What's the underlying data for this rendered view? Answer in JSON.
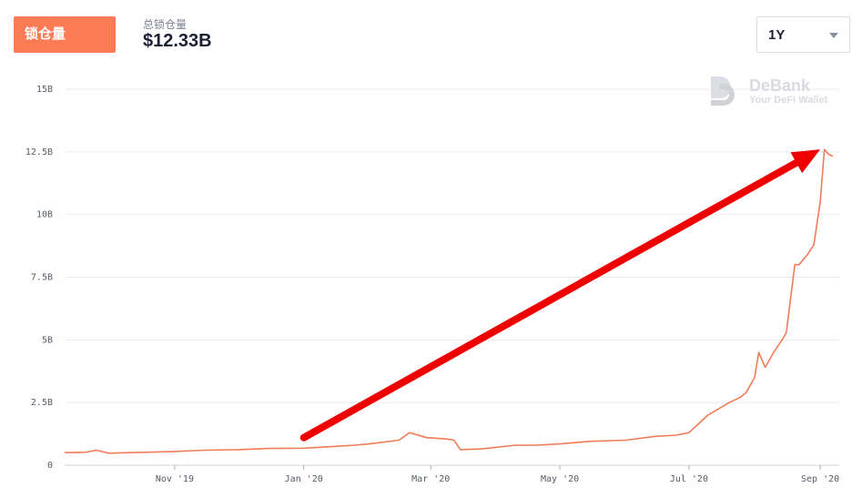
{
  "header": {
    "tab_label": "锁仓量",
    "metric_label": "总锁仓量",
    "metric_value": "$12.33B",
    "period_value": "1Y"
  },
  "watermark": {
    "brand": "DeBank",
    "tagline": "Your DeFi Wallet"
  },
  "colors": {
    "accent": "#fc7c56",
    "line": "#f07c5a",
    "arrow": "#ee0000",
    "grid": "#e9ebef"
  },
  "chart_data": {
    "type": "line",
    "title": "",
    "xlabel": "",
    "ylabel": "",
    "ylim": [
      0,
      15
    ],
    "y_unit": "B USD",
    "yticks": [
      {
        "value": 0,
        "label": "0"
      },
      {
        "value": 2.5,
        "label": "2.5B"
      },
      {
        "value": 5,
        "label": "5B"
      },
      {
        "value": 7.5,
        "label": "7.5B"
      },
      {
        "value": 10,
        "label": "10B"
      },
      {
        "value": 12.5,
        "label": "12.5B"
      },
      {
        "value": 15,
        "label": "15B"
      }
    ],
    "xlim": [
      "2019-09-10",
      "2020-09-10"
    ],
    "xticks": [
      {
        "date": "2019-11-01",
        "label": "Nov '19"
      },
      {
        "date": "2020-01-01",
        "label": "Jan '20"
      },
      {
        "date": "2020-03-01",
        "label": "Mar '20"
      },
      {
        "date": "2020-05-01",
        "label": "May '20"
      },
      {
        "date": "2020-07-01",
        "label": "Jul '20"
      },
      {
        "date": "2020-09-01",
        "label": "Sep '20"
      }
    ],
    "grid": true,
    "series": [
      {
        "x": [
          "2019-09-10",
          "2019-09-20",
          "2019-09-25",
          "2019-10-01",
          "2019-10-10",
          "2019-10-20",
          "2019-11-01",
          "2019-11-15",
          "2019-12-01",
          "2019-12-15",
          "2020-01-01",
          "2020-01-15",
          "2020-01-25",
          "2020-02-01",
          "2020-02-15",
          "2020-02-20",
          "2020-02-28",
          "2020-03-08",
          "2020-03-12",
          "2020-03-15",
          "2020-03-25",
          "2020-04-10",
          "2020-04-20",
          "2020-05-01",
          "2020-05-15",
          "2020-06-01",
          "2020-06-15",
          "2020-06-25",
          "2020-07-01",
          "2020-07-10",
          "2020-07-20",
          "2020-07-25",
          "2020-07-28",
          "2020-08-01",
          "2020-08-03",
          "2020-08-06",
          "2020-08-10",
          "2020-08-14",
          "2020-08-16",
          "2020-08-20",
          "2020-08-22",
          "2020-08-26",
          "2020-08-29",
          "2020-09-01",
          "2020-09-03",
          "2020-09-05",
          "2020-09-07"
        ],
        "values": [
          0.5,
          0.52,
          0.6,
          0.48,
          0.5,
          0.52,
          0.55,
          0.6,
          0.62,
          0.67,
          0.68,
          0.75,
          0.8,
          0.85,
          1.0,
          1.3,
          1.1,
          1.05,
          1.0,
          0.62,
          0.65,
          0.8,
          0.8,
          0.85,
          0.95,
          1.0,
          1.15,
          1.2,
          1.3,
          2.0,
          2.5,
          2.7,
          2.9,
          3.5,
          4.5,
          3.9,
          4.5,
          5.0,
          5.3,
          8.0,
          8.0,
          8.4,
          8.8,
          10.5,
          12.6,
          12.4,
          12.33
        ]
      }
    ],
    "annotation": {
      "type": "arrow",
      "from": {
        "date": "2020-01-01",
        "value": 1.1
      },
      "to": {
        "date": "2020-09-01",
        "value": 12.6
      }
    }
  }
}
